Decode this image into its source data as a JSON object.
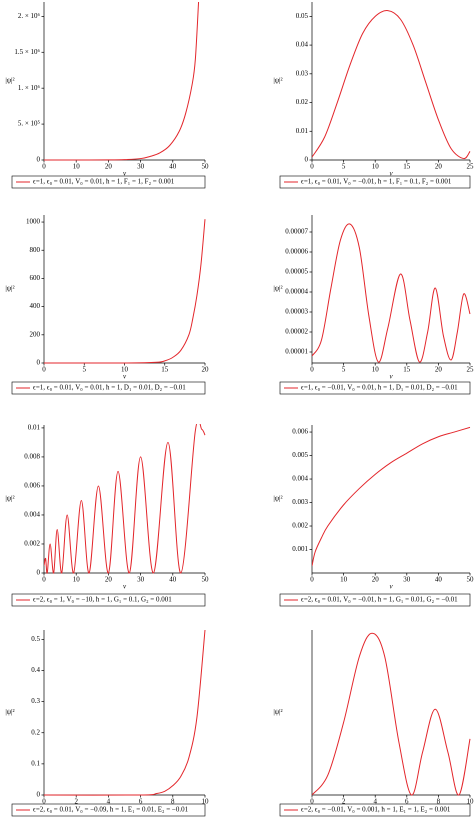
{
  "chart_data": [
    {
      "type": "line",
      "xlabel": "v",
      "ylabel": "|ψ|²",
      "x": [
        0,
        10,
        20,
        25,
        30,
        33,
        36,
        39,
        42,
        44,
        46,
        47,
        48
      ],
      "series": [
        {
          "name": "ϵ=1, ϵ₀ = 0.01, V₀ = 0.01, ħ = 1, F₁ = 1, F₂ = 0.001",
          "color": "#e3262b",
          "values": [
            0,
            0,
            1000,
            5000,
            20000,
            50000,
            100000,
            200000,
            400000,
            650000,
            1050000,
            1400000,
            2200000
          ]
        }
      ],
      "xlim": [
        0,
        50
      ],
      "xticks": [
        0,
        10,
        20,
        30,
        40,
        50
      ],
      "ylim": [
        0,
        2200000
      ],
      "yticks": [
        0,
        {
          "value": 500000,
          "label": "5. × 10⁵"
        },
        {
          "value": 1000000,
          "label": "1. × 10⁶"
        },
        {
          "value": 1500000,
          "label": "1.5 × 10⁶"
        },
        {
          "value": 2000000,
          "label": "2. × 10⁶"
        }
      ]
    },
    {
      "type": "line",
      "xlabel": "v",
      "ylabel": "|ψ|²",
      "x": [
        0,
        2,
        4,
        6,
        8,
        10,
        12,
        14,
        16,
        18,
        20,
        22,
        24,
        25
      ],
      "series": [
        {
          "name": "ϵ=1, ϵ₀ = 0.01, V₀ = −0.01, ħ = 1, F₁ = 0.1, F₂ = 0.001",
          "color": "#e3262b",
          "values": [
            0.001,
            0.008,
            0.02,
            0.033,
            0.044,
            0.05,
            0.052,
            0.049,
            0.04,
            0.027,
            0.014,
            0.004,
            0.0005,
            0.003
          ]
        }
      ],
      "xlim": [
        0,
        25
      ],
      "xticks": [
        0,
        5,
        10,
        15,
        20,
        25
      ],
      "ylim": [
        0,
        0.055
      ],
      "yticks": [
        0,
        0.01,
        0.02,
        0.03,
        0.04,
        0.05
      ]
    },
    {
      "type": "line",
      "xlabel": "v",
      "ylabel": "|ψ|²",
      "x": [
        0,
        10,
        14,
        15,
        16,
        17,
        18,
        18.5,
        19,
        19.5,
        20
      ],
      "series": [
        {
          "name": "ϵ=1, ϵ₀ = 0.01, V₀ = 0.01, ħ = 1, D₁ = 0.01, D₂ = −0.01",
          "color": "#e3262b",
          "values": [
            0,
            0,
            5,
            15,
            40,
            90,
            200,
            320,
            480,
            700,
            1020
          ]
        }
      ],
      "xlim": [
        0,
        20
      ],
      "xticks": [
        0,
        5,
        10,
        15,
        20
      ],
      "ylim": [
        0,
        1050
      ],
      "yticks": [
        0,
        200,
        400,
        600,
        800,
        1000
      ]
    },
    {
      "type": "line",
      "xlabel": "v",
      "ylabel": "|ψ|²",
      "x": [
        0,
        1.5,
        3,
        4.5,
        6,
        7.5,
        9,
        10.5,
        12,
        14,
        15.5,
        17,
        18.3,
        19.5,
        20.8,
        22,
        23,
        24,
        25
      ],
      "series": [
        {
          "name": "ϵ=1, ϵ₀ = −0.01, V₀ = 0.01, ħ = 1, D₁ = 0.01, D₂ = −0.01",
          "color": "#e3262b",
          "values": [
            8e-06,
            1.6e-05,
            4.2e-05,
            6.6e-05,
            7.4e-05,
            6.2e-05,
            2.8e-05,
            5e-06,
            2.2e-05,
            4.9e-05,
            2.6e-05,
            5e-06,
            2e-05,
            4.2e-05,
            1.8e-05,
            6e-06,
            2e-05,
            3.9e-05,
            2.9e-05
          ]
        }
      ],
      "xlim": [
        0,
        25
      ],
      "xticks": [
        0,
        5,
        10,
        15,
        20,
        25
      ],
      "ylim": [
        4.5e-06,
        7.85e-05
      ],
      "yticks": [
        1e-05,
        2e-05,
        3e-05,
        4e-05,
        5e-05,
        6e-05,
        7e-05
      ]
    },
    {
      "type": "line",
      "xlabel": "v",
      "ylabel": "|ψ|²",
      "x": [
        0,
        0.5,
        1,
        1.9,
        3,
        4.1,
        5.5,
        7.2,
        9.2,
        11.6,
        14,
        16.9,
        20,
        23,
        26.5,
        30,
        34,
        38.5,
        42.5,
        47,
        49,
        50
      ],
      "series": [
        {
          "name": "ϵ=2, ϵ₀ = 1, V₀ = −10, ħ = 1, G₁ = 0.1, G₂ = 0.001",
          "color": "#e3262b",
          "values": [
            0.0005,
            0.001,
            0,
            0.002,
            0,
            0.003,
            0,
            0.004,
            0,
            0.005,
            0,
            0.006,
            0,
            0.007,
            0,
            0.008,
            0,
            0.009,
            0,
            0.0098,
            0.0099,
            0.0095
          ]
        }
      ],
      "xlim": [
        0,
        50
      ],
      "xticks": [
        0,
        10,
        20,
        30,
        40,
        50
      ],
      "ylim": [
        0,
        0.0102
      ],
      "yticks": [
        0,
        0.002,
        0.004,
        0.006,
        0.008,
        0.01
      ]
    },
    {
      "type": "line",
      "xlabel": "v",
      "ylabel": "|ψ|²",
      "x": [
        0,
        1,
        3,
        5,
        10,
        15,
        20,
        25,
        30,
        35,
        40,
        45,
        50
      ],
      "series": [
        {
          "name": "ϵ=2, ϵ₀ = 0.01, V₀ = −0.01, ħ = 1, G₁ = 0.01, G₂ = −0.01",
          "color": "#e3262b",
          "values": [
            0.0003,
            0.0009,
            0.0015,
            0.002,
            0.0029,
            0.0036,
            0.0042,
            0.0047,
            0.0051,
            0.0055,
            0.0058,
            0.006,
            0.0062
          ]
        }
      ],
      "xlim": [
        0,
        50
      ],
      "xticks": [
        0,
        10,
        20,
        30,
        40,
        50
      ],
      "ylim": [
        0,
        0.0063
      ],
      "yticks": [
        0.001,
        0.002,
        0.003,
        0.004,
        0.005,
        0.006
      ]
    },
    {
      "type": "line",
      "xlabel": "v",
      "ylabel": "|ψ|²",
      "x": [
        0,
        6,
        7,
        7.5,
        8,
        8.5,
        9,
        9.5,
        10
      ],
      "series": [
        {
          "name": "ϵ=2, ϵ₀ = 0.01, V₀ = −0.09, ħ = 1, E₁ = 0.01, E₂ = −0.01",
          "color": "#e3262b",
          "values": [
            0,
            0,
            0.005,
            0.012,
            0.03,
            0.06,
            0.12,
            0.25,
            0.53
          ]
        }
      ],
      "xlim": [
        0,
        10
      ],
      "xticks": [
        0,
        2,
        4,
        6,
        8,
        10
      ],
      "ylim": [
        0,
        0.53
      ],
      "yticks": [
        0,
        0.1,
        0.2,
        0.3,
        0.4,
        0.5
      ]
    },
    {
      "type": "line",
      "xlabel": "v",
      "ylabel": "|ψ|²",
      "x": [
        0,
        1,
        2,
        3,
        3.8,
        4.6,
        5.5,
        6.3,
        7,
        7.8,
        8.6,
        9.3,
        10
      ],
      "series": [
        {
          "name": "ϵ=2, ϵ₀ = −0.01, V₀ = 0.001, ħ = 1, E₁ = 1, E₂ = 0.001",
          "color": "#e3262b",
          "values": [
            0,
            0.06,
            0.22,
            0.42,
            0.49,
            0.42,
            0.16,
            0,
            0.13,
            0.26,
            0.13,
            0,
            0.17
          ]
        }
      ],
      "xlim": [
        0,
        10
      ],
      "xticks": [
        0,
        2,
        4,
        6,
        8,
        10
      ],
      "ylim": [
        0,
        0.5
      ]
    }
  ]
}
